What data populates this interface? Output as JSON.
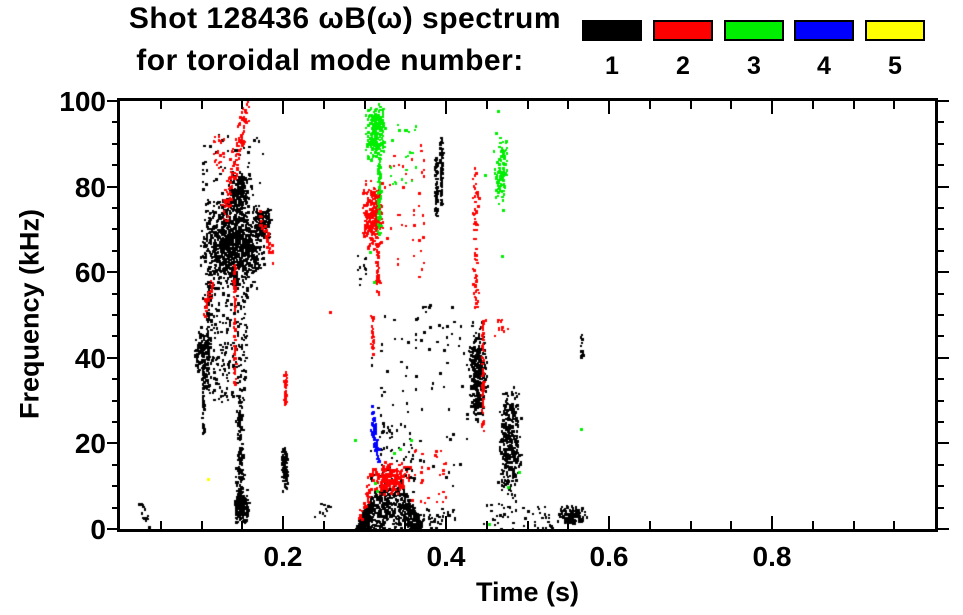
{
  "chart_data": {
    "type": "scatter",
    "title_line1": "Shot 128436 ωB(ω) spectrum",
    "title_line2": "for toroidal mode number:",
    "x_axis": {
      "label": "Time (s)",
      "range": [
        0.0,
        1.0
      ],
      "major_ticks": [
        {
          "value": 0.2,
          "label": "0.2"
        },
        {
          "value": 0.4,
          "label": "0.4"
        },
        {
          "value": 0.6,
          "label": "0.6"
        },
        {
          "value": 0.8,
          "label": "0.8"
        }
      ],
      "minor_tick_step": 0.05
    },
    "y_axis": {
      "label": "Frequency (kHz)",
      "range": [
        0,
        100
      ],
      "major_ticks": [
        {
          "value": 0,
          "label": "0"
        },
        {
          "value": 20,
          "label": "20"
        },
        {
          "value": 40,
          "label": "40"
        },
        {
          "value": 60,
          "label": "60"
        },
        {
          "value": 80,
          "label": "80"
        },
        {
          "value": 100,
          "label": "100"
        }
      ],
      "minor_tick_step": 5
    },
    "legend": {
      "position": "top-right",
      "entries": [
        {
          "label": "1",
          "color": "#000000"
        },
        {
          "label": "2",
          "color": "#ff0000"
        },
        {
          "label": "3",
          "color": "#00ee00"
        },
        {
          "label": "4",
          "color": "#0000ff"
        },
        {
          "label": "5",
          "color": "#ffff00"
        }
      ]
    },
    "series": [
      {
        "name": "mode n=1",
        "color": "#000000",
        "clusters": [
          {
            "shape": "blob",
            "t": [
              0.095,
              0.178
            ],
            "f": [
              56,
              78
            ],
            "n": 950
          },
          {
            "shape": "blob",
            "t": [
              0.132,
              0.158
            ],
            "f": [
              74,
              84
            ],
            "n": 180
          },
          {
            "shape": "blob",
            "t": [
              0.162,
              0.186
            ],
            "f": [
              68,
              75
            ],
            "n": 150
          },
          {
            "shape": "uniform",
            "t": [
              0.1,
              0.175
            ],
            "f": [
              78,
              93
            ],
            "n": 45
          },
          {
            "shape": "uniform",
            "t": [
              0.098,
              0.155
            ],
            "f": [
              30,
              58
            ],
            "n": 260
          },
          {
            "shape": "vline",
            "t": [
              0.104,
              0.11
            ],
            "f": [
              33,
              58
            ],
            "n": 60
          },
          {
            "shape": "blob",
            "t": [
              0.09,
              0.108
            ],
            "f": [
              36,
              47
            ],
            "n": 110
          },
          {
            "shape": "vline",
            "t": [
              0.099,
              0.103
            ],
            "f": [
              22,
              38
            ],
            "n": 35
          },
          {
            "shape": "vline",
            "t": [
              0.14,
              0.152
            ],
            "f": [
              3,
              32
            ],
            "n": 140
          },
          {
            "shape": "blob",
            "t": [
              0.138,
              0.158
            ],
            "f": [
              1,
              10
            ],
            "n": 140
          },
          {
            "shape": "blob",
            "t": [
              0.196,
              0.206
            ],
            "f": [
              9,
              20
            ],
            "n": 90
          },
          {
            "shape": "diag",
            "t": [
              0.024,
              0.034
            ],
            "f": [
              6,
              2
            ],
            "jt": 0.002,
            "jf": 1.5,
            "n": 18
          },
          {
            "shape": "uniform",
            "t": [
              0.235,
              0.262
            ],
            "f": [
              3,
              6
            ],
            "n": 10
          },
          {
            "shape": "mound",
            "t": [
              0.288,
              0.368
            ],
            "f": [
              0,
              11
            ],
            "peak_t": 0.33,
            "n": 620
          },
          {
            "shape": "uniform",
            "t": [
              0.358,
              0.41
            ],
            "f": [
              0,
              5
            ],
            "n": 45
          },
          {
            "shape": "uniform",
            "t": [
              0.29,
              0.303
            ],
            "f": [
              57,
              64
            ],
            "n": 12
          },
          {
            "shape": "uniform",
            "t": [
              0.305,
              0.425
            ],
            "f": [
              10,
              50
            ],
            "n": 85
          },
          {
            "shape": "uniform",
            "t": [
              0.317,
              0.36
            ],
            "f": [
              8,
              25
            ],
            "n": 60
          },
          {
            "shape": "vline",
            "t": [
              0.384,
              0.39
            ],
            "f": [
              73,
              87
            ],
            "n": 65
          },
          {
            "shape": "vline",
            "t": [
              0.39,
              0.396
            ],
            "f": [
              76,
              92
            ],
            "n": 65
          },
          {
            "shape": "blob",
            "t": [
              0.426,
              0.45
            ],
            "f": [
              24,
              49
            ],
            "n": 300
          },
          {
            "shape": "blob",
            "t": [
              0.462,
              0.492
            ],
            "f": [
              6,
              34
            ],
            "n": 330
          },
          {
            "shape": "uniform",
            "t": [
              0.445,
              0.532
            ],
            "f": [
              0,
              6
            ],
            "n": 50
          },
          {
            "shape": "blob",
            "t": [
              0.534,
              0.572
            ],
            "f": [
              1,
              6
            ],
            "n": 120
          },
          {
            "shape": "vline",
            "t": [
              0.5635,
              0.567
            ],
            "f": [
              40,
              46
            ],
            "n": 20
          },
          {
            "shape": "uniform",
            "t": [
              0.36,
              0.41
            ],
            "f": [
              45,
              53
            ],
            "n": 14
          }
        ]
      },
      {
        "name": "mode n=2",
        "color": "#ff0000",
        "clusters": [
          {
            "shape": "diag",
            "t": [
              0.127,
              0.155
            ],
            "f": [
              74,
              100
            ],
            "jt": 0.004,
            "jf": 4,
            "n": 130
          },
          {
            "shape": "uniform",
            "t": [
              0.113,
              0.128
            ],
            "f": [
              84,
              92
            ],
            "n": 22
          },
          {
            "shape": "diag",
            "t": [
              0.171,
              0.187
            ],
            "f": [
              73,
              63
            ],
            "jt": 0.002,
            "jf": 2,
            "n": 40
          },
          {
            "shape": "diag",
            "t": [
              0.102,
              0.113
            ],
            "f": [
              51,
              57
            ],
            "jt": 0.002,
            "jf": 2,
            "n": 30
          },
          {
            "shape": "vline",
            "t": [
              0.1375,
              0.1415
            ],
            "f": [
              34,
              63
            ],
            "n": 70
          },
          {
            "shape": "vline",
            "t": [
              0.199,
              0.204
            ],
            "f": [
              29,
              37
            ],
            "n": 40
          },
          {
            "shape": "blob",
            "t": [
              0.296,
              0.322
            ],
            "f": [
              65,
              82
            ],
            "n": 280
          },
          {
            "shape": "vline",
            "t": [
              0.312,
              0.318
            ],
            "f": [
              55,
              67
            ],
            "n": 45
          },
          {
            "shape": "uniform",
            "t": [
              0.322,
              0.375
            ],
            "f": [
              58,
              90
            ],
            "n": 40
          },
          {
            "shape": "vline",
            "t": [
              0.306,
              0.312
            ],
            "f": [
              41,
              50
            ],
            "n": 28
          },
          {
            "shape": "blob",
            "t": [
              0.3,
              0.357
            ],
            "f": [
              8,
              16
            ],
            "n": 220
          },
          {
            "shape": "diag",
            "t": [
              0.293,
              0.306
            ],
            "f": [
              3,
              9
            ],
            "jt": 0.003,
            "jf": 2,
            "n": 28
          },
          {
            "shape": "uniform",
            "t": [
              0.355,
              0.4
            ],
            "f": [
              6,
              20
            ],
            "n": 30
          },
          {
            "shape": "vline",
            "t": [
              0.4305,
              0.44
            ],
            "f": [
              52,
              85
            ],
            "n": 70
          },
          {
            "shape": "vline",
            "t": [
              0.4415,
              0.4465
            ],
            "f": [
              23,
              49
            ],
            "n": 60
          },
          {
            "shape": "uniform",
            "t": [
              0.447,
              0.475
            ],
            "f": [
              45,
              50
            ],
            "n": 12
          },
          {
            "shape": "dots",
            "points": [
              [
                0.257,
                51
              ]
            ]
          }
        ]
      },
      {
        "name": "mode n=3",
        "color": "#00ee00",
        "clusters": [
          {
            "shape": "blob",
            "t": [
              0.299,
              0.326
            ],
            "f": [
              86,
              100
            ],
            "n": 240
          },
          {
            "shape": "vline",
            "t": [
              0.314,
              0.32
            ],
            "f": [
              69,
              88
            ],
            "n": 70
          },
          {
            "shape": "uniform",
            "t": [
              0.328,
              0.362
            ],
            "f": [
              79,
              96
            ],
            "n": 22
          },
          {
            "shape": "blob",
            "t": [
              0.457,
              0.476
            ],
            "f": [
              74,
              93
            ],
            "n": 110
          },
          {
            "shape": "dots",
            "points": [
              [
                0.462,
                98
              ],
              [
                0.447,
                83
              ],
              [
                0.468,
                64
              ],
              [
                0.287,
                21
              ],
              [
                0.312,
                11
              ],
              [
                0.314,
                9
              ],
              [
                0.335,
                18
              ],
              [
                0.342,
                19
              ],
              [
                0.452,
                1.5
              ],
              [
                0.475,
                10
              ],
              [
                0.488,
                13.5
              ],
              [
                0.565,
                23.5
              ],
              [
                0.305,
                65
              ],
              [
                0.356,
                21
              ],
              [
                0.311,
                58
              ]
            ]
          }
        ]
      },
      {
        "name": "mode n=4",
        "color": "#0000ff",
        "clusters": [
          {
            "shape": "diag",
            "t": [
              0.3085,
              0.3155
            ],
            "f": [
              25,
              18
            ],
            "jt": 0.0018,
            "jf": 2.5,
            "n": 70
          },
          {
            "shape": "dots",
            "points": [
              [
                0.3085,
                29
              ],
              [
                0.309,
                27.5
              ]
            ]
          }
        ]
      },
      {
        "name": "mode n=5",
        "color": "#ffff00",
        "clusters": [
          {
            "shape": "dots",
            "points": [
              [
                0.1065,
                12
              ]
            ]
          }
        ]
      }
    ]
  }
}
